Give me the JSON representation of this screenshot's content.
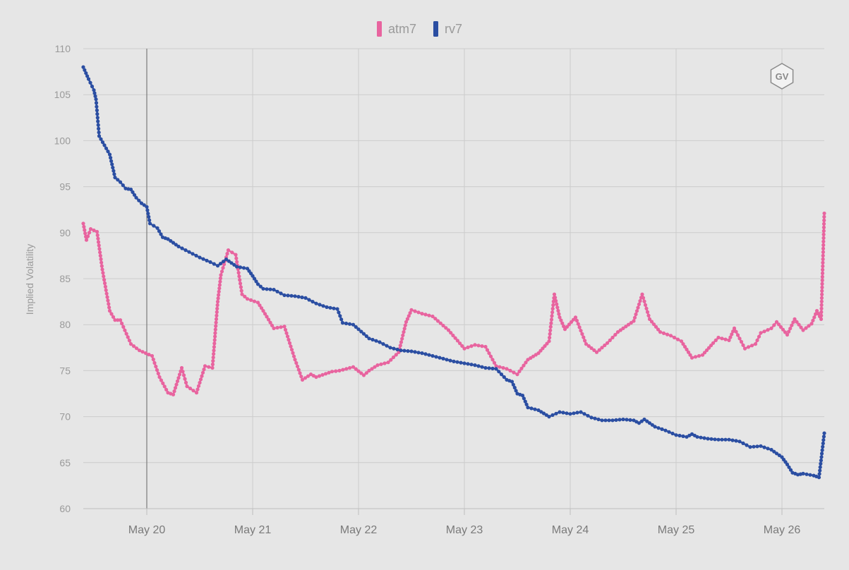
{
  "chart_data": {
    "type": "line",
    "ylabel": "Implied Volatility",
    "xlabel": "",
    "ylim": [
      60,
      110
    ],
    "yticks": [
      60,
      65,
      70,
      75,
      80,
      85,
      90,
      95,
      100,
      105,
      110
    ],
    "xlim": [
      19.4,
      26.4
    ],
    "xticks": [
      {
        "x": 20,
        "label": "May 20"
      },
      {
        "x": 21,
        "label": "May 21"
      },
      {
        "x": 22,
        "label": "May 22"
      },
      {
        "x": 23,
        "label": "May 23"
      },
      {
        "x": 24,
        "label": "May 24"
      },
      {
        "x": 25,
        "label": "May 25"
      },
      {
        "x": 26,
        "label": "May 26"
      }
    ],
    "crosshair_x": 20,
    "grid": true,
    "legend_position": "top-center",
    "watermark": "GV",
    "series": [
      {
        "name": "atm7",
        "color": "#e8649f",
        "x": [
          19.4,
          19.43,
          19.47,
          19.53,
          19.58,
          19.65,
          19.7,
          19.75,
          19.85,
          19.93,
          20.05,
          20.12,
          20.2,
          20.25,
          20.33,
          20.38,
          20.47,
          20.55,
          20.62,
          20.67,
          20.7,
          20.77,
          20.84,
          20.9,
          20.95,
          21.05,
          21.1,
          21.2,
          21.3,
          21.4,
          21.47,
          21.55,
          21.6,
          21.75,
          21.82,
          21.95,
          22.05,
          22.1,
          22.18,
          22.28,
          22.38,
          22.45,
          22.5,
          22.6,
          22.7,
          22.85,
          23.0,
          23.1,
          23.2,
          23.3,
          23.4,
          23.5,
          23.6,
          23.7,
          23.8,
          23.85,
          23.9,
          23.95,
          24.05,
          24.15,
          24.25,
          24.35,
          24.45,
          24.55,
          24.6,
          24.68,
          24.75,
          24.85,
          24.95,
          25.05,
          25.15,
          25.25,
          25.35,
          25.4,
          25.5,
          25.55,
          25.65,
          25.75,
          25.8,
          25.9,
          25.95,
          26.05,
          26.12,
          26.2,
          26.28,
          26.33,
          26.37,
          26.4
        ],
        "values": [
          91,
          89.2,
          90.4,
          90.1,
          86,
          81.5,
          80.5,
          80.5,
          77.9,
          77.2,
          76.6,
          74.3,
          72.6,
          72.4,
          75.3,
          73.3,
          72.6,
          75.5,
          75.3,
          82.5,
          85.4,
          88.1,
          87.6,
          83.3,
          82.8,
          82.4,
          81.5,
          79.6,
          79.8,
          76.2,
          74,
          74.6,
          74.3,
          74.9,
          75,
          75.4,
          74.5,
          75,
          75.6,
          75.9,
          77,
          80.3,
          81.6,
          81.2,
          80.9,
          79.4,
          77.4,
          77.8,
          77.6,
          75.5,
          75.2,
          74.6,
          76.2,
          76.9,
          78.2,
          83.3,
          80.8,
          79.5,
          80.8,
          77.9,
          77,
          78,
          79.2,
          80,
          80.4,
          83.3,
          80.6,
          79.2,
          78.8,
          78.2,
          76.4,
          76.7,
          78,
          78.6,
          78.3,
          79.6,
          77.4,
          77.9,
          79.1,
          79.6,
          80.3,
          78.9,
          80.6,
          79.4,
          80.1,
          81.5,
          80.6,
          92.1
        ]
      },
      {
        "name": "rv7",
        "color": "#2b4ea2",
        "x": [
          19.4,
          19.45,
          19.5,
          19.52,
          19.55,
          19.6,
          19.65,
          19.7,
          19.75,
          19.8,
          19.85,
          19.9,
          19.95,
          20.0,
          20.03,
          20.1,
          20.15,
          20.2,
          20.3,
          20.4,
          20.5,
          20.6,
          20.67,
          20.75,
          20.85,
          20.95,
          21.0,
          21.05,
          21.1,
          21.2,
          21.3,
          21.4,
          21.5,
          21.6,
          21.7,
          21.8,
          21.85,
          21.95,
          22.0,
          22.1,
          22.2,
          22.3,
          22.4,
          22.5,
          22.6,
          22.7,
          22.8,
          22.9,
          23.0,
          23.1,
          23.2,
          23.3,
          23.4,
          23.45,
          23.5,
          23.55,
          23.6,
          23.7,
          23.8,
          23.9,
          24.0,
          24.1,
          24.2,
          24.3,
          24.4,
          24.5,
          24.6,
          24.65,
          24.7,
          24.8,
          24.9,
          25.0,
          25.1,
          25.15,
          25.2,
          25.3,
          25.4,
          25.5,
          25.6,
          25.7,
          25.8,
          25.9,
          26.0,
          26.05,
          26.1,
          26.15,
          26.2,
          26.3,
          26.35,
          26.4
        ],
        "values": [
          108,
          106.7,
          105.5,
          104.5,
          100.5,
          99.5,
          98.5,
          96,
          95.5,
          94.8,
          94.7,
          93.8,
          93.2,
          92.8,
          91,
          90.5,
          89.5,
          89.3,
          88.5,
          87.9,
          87.3,
          86.8,
          86.4,
          87.1,
          86.3,
          86.1,
          85.3,
          84.4,
          83.9,
          83.8,
          83.2,
          83.1,
          82.9,
          82.3,
          81.9,
          81.7,
          80.2,
          80,
          79.5,
          78.5,
          78.1,
          77.5,
          77.2,
          77.1,
          76.9,
          76.6,
          76.3,
          76,
          75.8,
          75.6,
          75.3,
          75.2,
          74,
          73.8,
          72.5,
          72.3,
          71,
          70.7,
          70,
          70.5,
          70.3,
          70.5,
          69.9,
          69.6,
          69.6,
          69.7,
          69.6,
          69.3,
          69.7,
          68.9,
          68.5,
          68,
          67.8,
          68.1,
          67.8,
          67.6,
          67.5,
          67.5,
          67.3,
          66.7,
          66.8,
          66.4,
          65.6,
          64.8,
          63.9,
          63.7,
          63.8,
          63.6,
          63.4,
          68.2
        ]
      }
    ]
  }
}
